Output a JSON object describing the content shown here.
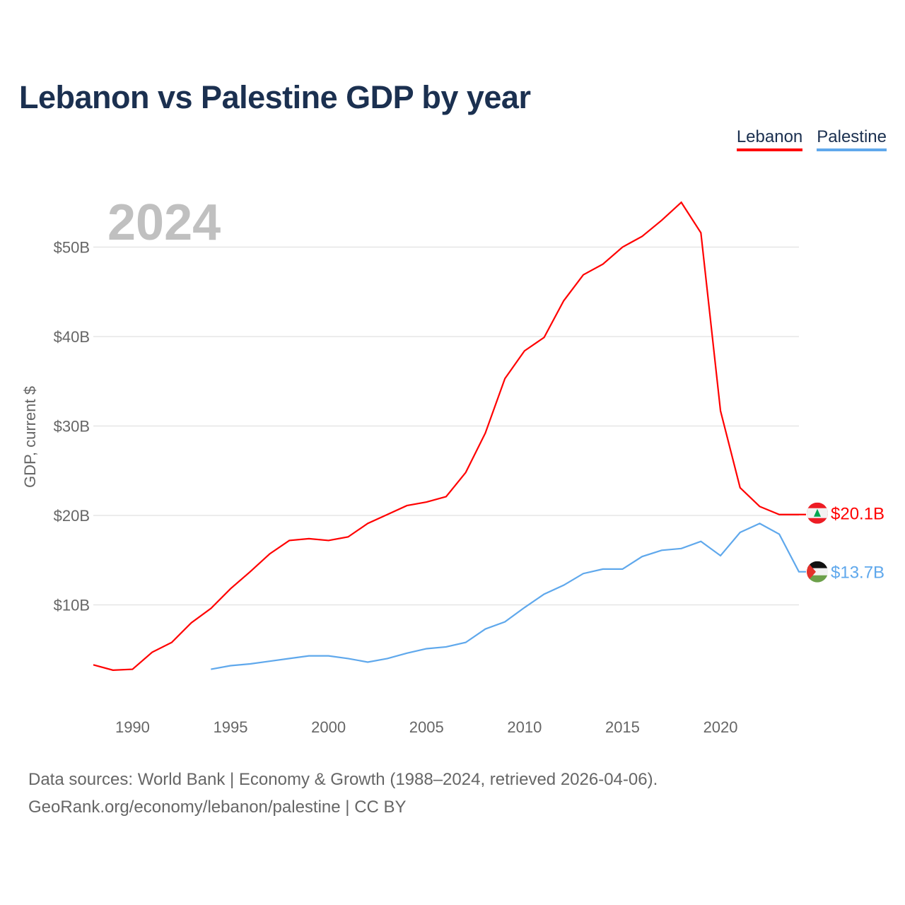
{
  "title": "Lebanon vs Palestine GDP by year",
  "footer": {
    "line1": "Data sources: World Bank | Economy & Growth (1988–2024, retrieved 2026-04-06).",
    "line2": "GeoRank.org/economy/lebanon/palestine | CC BY"
  },
  "chart_data": {
    "type": "line",
    "title": "Lebanon vs Palestine GDP by year",
    "ylabel": "GDP, current $",
    "xlabel": "",
    "year_watermark": "2024",
    "ylim": [
      0,
      58
    ],
    "xlim": [
      1988,
      2024
    ],
    "yticks": [
      {
        "v": 10,
        "label": "$10B"
      },
      {
        "v": 20,
        "label": "$20B"
      },
      {
        "v": 30,
        "label": "$30B"
      },
      {
        "v": 40,
        "label": "$40B"
      },
      {
        "v": 50,
        "label": "$50B"
      }
    ],
    "xticks": [
      {
        "v": 1990,
        "label": "1990"
      },
      {
        "v": 1995,
        "label": "1995"
      },
      {
        "v": 2000,
        "label": "2000"
      },
      {
        "v": 2005,
        "label": "2005"
      },
      {
        "v": 2010,
        "label": "2010"
      },
      {
        "v": 2015,
        "label": "2015"
      },
      {
        "v": 2020,
        "label": "2020"
      }
    ],
    "legend_position": "top-right",
    "series": [
      {
        "name": "Lebanon",
        "color": "#ff0000",
        "start": 1988,
        "end_label": "$20.1B",
        "values": [
          3.3,
          2.7,
          2.8,
          4.7,
          5.8,
          8.0,
          9.6,
          11.8,
          13.7,
          15.7,
          17.2,
          17.4,
          17.2,
          17.6,
          19.1,
          20.1,
          21.1,
          21.5,
          22.1,
          24.8,
          29.2,
          35.3,
          38.4,
          39.9,
          44.0,
          46.9,
          48.1,
          50.0,
          51.2,
          53.0,
          55.0,
          51.6,
          31.7,
          23.1,
          21.0,
          20.1,
          20.1
        ]
      },
      {
        "name": "Palestine",
        "color": "#5fa8ec",
        "start": 1994,
        "end_label": "$13.7B",
        "values": [
          2.8,
          3.2,
          3.4,
          3.7,
          4.0,
          4.3,
          4.3,
          4.0,
          3.6,
          4.0,
          4.6,
          5.1,
          5.3,
          5.8,
          7.3,
          8.1,
          9.7,
          11.2,
          12.2,
          13.5,
          14.0,
          14.0,
          15.4,
          16.1,
          16.3,
          17.1,
          15.5,
          18.1,
          19.1,
          17.9,
          13.7
        ]
      }
    ]
  }
}
